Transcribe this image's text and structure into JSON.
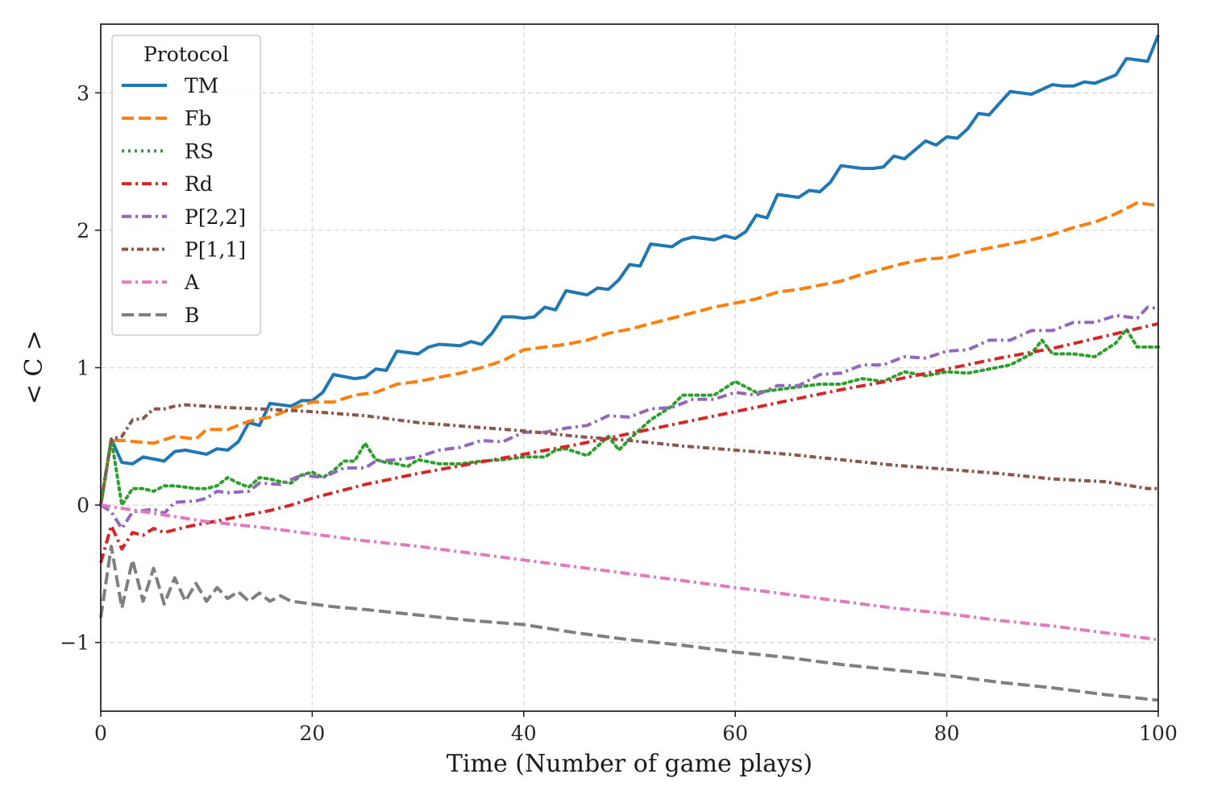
{
  "chart_data": {
    "type": "line",
    "title": "",
    "xlabel": "Time (Number of game plays)",
    "ylabel": "< C >",
    "xlim": [
      0,
      100
    ],
    "ylim": [
      -1.5,
      3.5
    ],
    "xticks": [
      0,
      20,
      40,
      60,
      80,
      100
    ],
    "xtick_labels": [
      "0",
      "20",
      "40",
      "60",
      "80",
      "100"
    ],
    "yticks": [
      -1,
      0,
      1,
      2,
      3
    ],
    "ytick_labels": [
      "−1",
      "0",
      "1",
      "2",
      "3"
    ],
    "grid": true,
    "legend": {
      "title": "Protocol",
      "placement": "top-left"
    },
    "series": [
      {
        "name": "TM",
        "color": "#1f77b4",
        "style": "solid",
        "x": [
          0,
          1,
          2,
          3,
          4,
          6,
          7,
          8,
          10,
          11,
          12,
          13,
          14,
          15,
          16,
          18,
          19,
          20,
          21,
          22,
          24,
          25,
          26,
          27,
          28,
          30,
          31,
          32,
          34,
          35,
          36,
          37,
          38,
          39,
          40,
          41,
          42,
          43,
          44,
          46,
          47,
          48,
          49,
          50,
          51,
          52,
          54,
          55,
          56,
          58,
          59,
          60,
          61,
          62,
          63,
          64,
          66,
          67,
          68,
          69,
          70,
          72,
          73,
          74,
          75,
          76,
          78,
          79,
          80,
          81,
          82,
          83,
          84,
          86,
          87,
          88,
          90,
          91,
          92,
          93,
          94,
          96,
          97,
          98,
          99,
          100
        ],
        "y": [
          0,
          0.48,
          0.31,
          0.3,
          0.35,
          0.32,
          0.39,
          0.4,
          0.37,
          0.41,
          0.4,
          0.46,
          0.6,
          0.58,
          0.74,
          0.72,
          0.76,
          0.76,
          0.82,
          0.95,
          0.92,
          0.93,
          0.99,
          0.98,
          1.12,
          1.1,
          1.15,
          1.17,
          1.16,
          1.19,
          1.17,
          1.25,
          1.37,
          1.37,
          1.36,
          1.37,
          1.44,
          1.42,
          1.56,
          1.53,
          1.58,
          1.57,
          1.64,
          1.75,
          1.74,
          1.9,
          1.88,
          1.93,
          1.95,
          1.93,
          1.96,
          1.94,
          1.99,
          2.11,
          2.09,
          2.26,
          2.24,
          2.29,
          2.28,
          2.35,
          2.47,
          2.45,
          2.45,
          2.46,
          2.54,
          2.52,
          2.65,
          2.62,
          2.68,
          2.67,
          2.74,
          2.85,
          2.84,
          3.01,
          3.0,
          2.99,
          3.06,
          3.05,
          3.05,
          3.08,
          3.07,
          3.13,
          3.25,
          3.24,
          3.23,
          3.42
        ]
      },
      {
        "name": "Fb",
        "color": "#ff7f0e",
        "style": "dashed",
        "x": [
          0,
          1,
          2,
          5,
          7,
          9,
          10,
          12,
          14,
          16,
          18,
          20,
          22,
          24,
          26,
          28,
          30,
          32,
          34,
          36,
          38,
          40,
          42,
          44,
          46,
          48,
          50,
          52,
          54,
          56,
          58,
          60,
          62,
          64,
          66,
          68,
          70,
          72,
          74,
          76,
          78,
          80,
          82,
          84,
          86,
          88,
          90,
          92,
          94,
          96,
          98,
          100
        ],
        "y": [
          0,
          0.47,
          0.47,
          0.45,
          0.5,
          0.48,
          0.55,
          0.55,
          0.61,
          0.64,
          0.7,
          0.75,
          0.75,
          0.8,
          0.82,
          0.88,
          0.9,
          0.93,
          0.96,
          1.0,
          1.05,
          1.13,
          1.15,
          1.17,
          1.2,
          1.25,
          1.28,
          1.32,
          1.36,
          1.4,
          1.44,
          1.47,
          1.5,
          1.55,
          1.57,
          1.6,
          1.63,
          1.68,
          1.72,
          1.76,
          1.79,
          1.8,
          1.84,
          1.87,
          1.9,
          1.93,
          1.97,
          2.02,
          2.06,
          2.12,
          2.2,
          2.18
        ]
      },
      {
        "name": "RS",
        "color": "#2ca02c",
        "style": "dotted",
        "x": [
          0,
          1,
          2,
          3,
          4,
          5,
          6,
          7,
          8,
          9,
          10,
          11,
          12,
          13,
          14,
          15,
          16,
          17,
          18,
          19,
          20,
          21,
          22,
          23,
          24,
          25,
          26,
          27,
          28,
          29,
          30,
          32,
          34,
          36,
          38,
          40,
          42,
          43,
          44,
          46,
          48,
          49,
          50,
          52,
          54,
          55,
          56,
          58,
          60,
          62,
          64,
          66,
          68,
          70,
          72,
          74,
          76,
          78,
          80,
          82,
          84,
          86,
          88,
          89,
          90,
          92,
          94,
          96,
          97,
          98,
          100
        ],
        "y": [
          0,
          0.48,
          0.0,
          0.12,
          0.12,
          0.1,
          0.14,
          0.14,
          0.13,
          0.12,
          0.12,
          0.14,
          0.2,
          0.16,
          0.13,
          0.2,
          0.19,
          0.17,
          0.16,
          0.22,
          0.24,
          0.2,
          0.25,
          0.32,
          0.32,
          0.45,
          0.33,
          0.31,
          0.3,
          0.28,
          0.33,
          0.3,
          0.3,
          0.32,
          0.33,
          0.35,
          0.35,
          0.4,
          0.41,
          0.36,
          0.5,
          0.4,
          0.48,
          0.62,
          0.72,
          0.8,
          0.8,
          0.8,
          0.9,
          0.82,
          0.84,
          0.86,
          0.88,
          0.88,
          0.92,
          0.9,
          0.97,
          0.94,
          0.97,
          0.96,
          0.99,
          1.02,
          1.1,
          1.2,
          1.1,
          1.1,
          1.08,
          1.18,
          1.28,
          1.15,
          1.15
        ]
      },
      {
        "name": "Rd",
        "color": "#d62728",
        "style": "dashdot",
        "x": [
          0,
          1,
          2,
          3,
          4,
          5,
          6,
          8,
          10,
          12,
          14,
          16,
          18,
          20,
          25,
          30,
          35,
          40,
          45,
          50,
          55,
          60,
          65,
          70,
          75,
          80,
          85,
          90,
          95,
          100
        ],
        "y": [
          -0.42,
          -0.15,
          -0.32,
          -0.2,
          -0.22,
          -0.17,
          -0.2,
          -0.16,
          -0.13,
          -0.1,
          -0.07,
          -0.04,
          0.0,
          0.05,
          0.15,
          0.23,
          0.3,
          0.37,
          0.44,
          0.52,
          0.6,
          0.68,
          0.76,
          0.84,
          0.91,
          0.99,
          1.07,
          1.14,
          1.23,
          1.32
        ]
      },
      {
        "name": "P[2,2]",
        "color": "#9467bd",
        "style": "dashdot",
        "x": [
          0,
          1,
          2,
          3,
          5,
          6,
          7,
          9,
          10,
          11,
          12,
          14,
          15,
          17,
          19,
          21,
          23,
          25,
          26,
          28,
          30,
          32,
          34,
          36,
          38,
          40,
          42,
          44,
          46,
          48,
          50,
          52,
          54,
          56,
          58,
          60,
          62,
          64,
          66,
          68,
          70,
          72,
          74,
          76,
          78,
          80,
          82,
          84,
          86,
          88,
          90,
          92,
          94,
          96,
          98,
          99,
          100
        ],
        "y": [
          0,
          -0.05,
          -0.17,
          -0.05,
          -0.03,
          -0.06,
          0.02,
          0.03,
          0.05,
          0.1,
          0.09,
          0.1,
          0.16,
          0.15,
          0.22,
          0.2,
          0.27,
          0.27,
          0.32,
          0.33,
          0.35,
          0.4,
          0.42,
          0.47,
          0.46,
          0.53,
          0.53,
          0.56,
          0.58,
          0.65,
          0.64,
          0.7,
          0.71,
          0.77,
          0.77,
          0.82,
          0.8,
          0.87,
          0.87,
          0.95,
          0.96,
          1.02,
          1.02,
          1.08,
          1.07,
          1.12,
          1.13,
          1.2,
          1.2,
          1.27,
          1.27,
          1.33,
          1.33,
          1.38,
          1.36,
          1.44,
          1.43
        ]
      },
      {
        "name": "P[1,1]",
        "color": "#8c564b",
        "style": "densely-dashdotted",
        "x": [
          0,
          1,
          2,
          3,
          4,
          5,
          6,
          7,
          8,
          10,
          12,
          15,
          20,
          25,
          30,
          35,
          40,
          45,
          50,
          55,
          60,
          65,
          70,
          75,
          80,
          85,
          90,
          95,
          99,
          100
        ],
        "y": [
          0,
          0.48,
          0.5,
          0.62,
          0.63,
          0.7,
          0.7,
          0.72,
          0.73,
          0.72,
          0.71,
          0.7,
          0.68,
          0.65,
          0.6,
          0.57,
          0.54,
          0.5,
          0.47,
          0.43,
          0.4,
          0.37,
          0.33,
          0.29,
          0.26,
          0.23,
          0.19,
          0.17,
          0.12,
          0.12
        ]
      },
      {
        "name": "A",
        "color": "#e377c2",
        "style": "dashdot",
        "x": [
          0,
          5,
          10,
          15,
          20,
          25,
          30,
          35,
          40,
          45,
          50,
          55,
          60,
          65,
          70,
          75,
          80,
          85,
          90,
          95,
          100
        ],
        "y": [
          0,
          -0.06,
          -0.12,
          -0.16,
          -0.21,
          -0.26,
          -0.3,
          -0.35,
          -0.4,
          -0.45,
          -0.5,
          -0.55,
          -0.6,
          -0.65,
          -0.7,
          -0.75,
          -0.79,
          -0.84,
          -0.88,
          -0.93,
          -0.98
        ]
      },
      {
        "name": "B",
        "color": "#7f7f7f",
        "style": "dashed",
        "x": [
          0,
          1,
          2,
          3,
          4,
          5,
          6,
          7,
          8,
          9,
          10,
          11,
          12,
          13,
          14,
          15,
          16,
          17,
          18,
          19,
          20,
          22,
          25,
          30,
          35,
          40,
          45,
          50,
          55,
          60,
          65,
          70,
          75,
          80,
          85,
          90,
          95,
          100
        ],
        "y": [
          -0.82,
          -0.3,
          -0.75,
          -0.4,
          -0.7,
          -0.46,
          -0.72,
          -0.53,
          -0.7,
          -0.57,
          -0.7,
          -0.6,
          -0.68,
          -0.63,
          -0.7,
          -0.64,
          -0.7,
          -0.66,
          -0.7,
          -0.71,
          -0.72,
          -0.74,
          -0.76,
          -0.8,
          -0.84,
          -0.87,
          -0.93,
          -0.98,
          -1.02,
          -1.07,
          -1.11,
          -1.16,
          -1.2,
          -1.24,
          -1.29,
          -1.33,
          -1.38,
          -1.42
        ]
      }
    ]
  }
}
